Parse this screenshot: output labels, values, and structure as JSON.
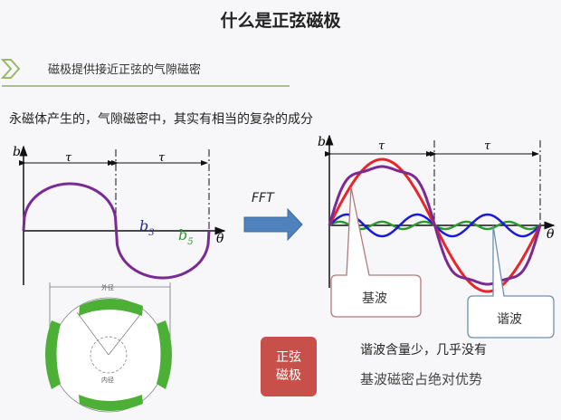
{
  "title": "什么是正弦磁极",
  "section": {
    "icon": "chevron-right-icon",
    "subtitle": "磁极提供接近正弦的气隙磁密"
  },
  "intro": "永磁体产生的，气隙磁密中，其实有相当的复杂的成分",
  "left_plot": {
    "y_label": "b",
    "x_label": "θ",
    "period_label": "τ",
    "harmonic3": "b",
    "harmonic3_sub": "3",
    "harmonic5": "b",
    "harmonic5_sub": "5"
  },
  "arrow": {
    "label": "FFT",
    "color": "#4f81bd"
  },
  "right_plot": {
    "y_label": "b",
    "x_label": "θ",
    "period_label": "τ",
    "callout_fundamental": "基波",
    "callout_harmonic": "谐波",
    "colors": {
      "fundamental": "#e8262a",
      "total": "#7b2a94",
      "third": "#1a1ad8",
      "fifth": "#2f9a2f"
    }
  },
  "diagram": {
    "outer_label": "外径",
    "inner_label": "内径",
    "magnet_color": "#4caf36"
  },
  "badge": {
    "line1": "正弦",
    "line2": "磁极",
    "color": "#c8504a"
  },
  "notes": [
    "谐波含量少，几乎没有",
    "基波磁密占绝对优势"
  ]
}
